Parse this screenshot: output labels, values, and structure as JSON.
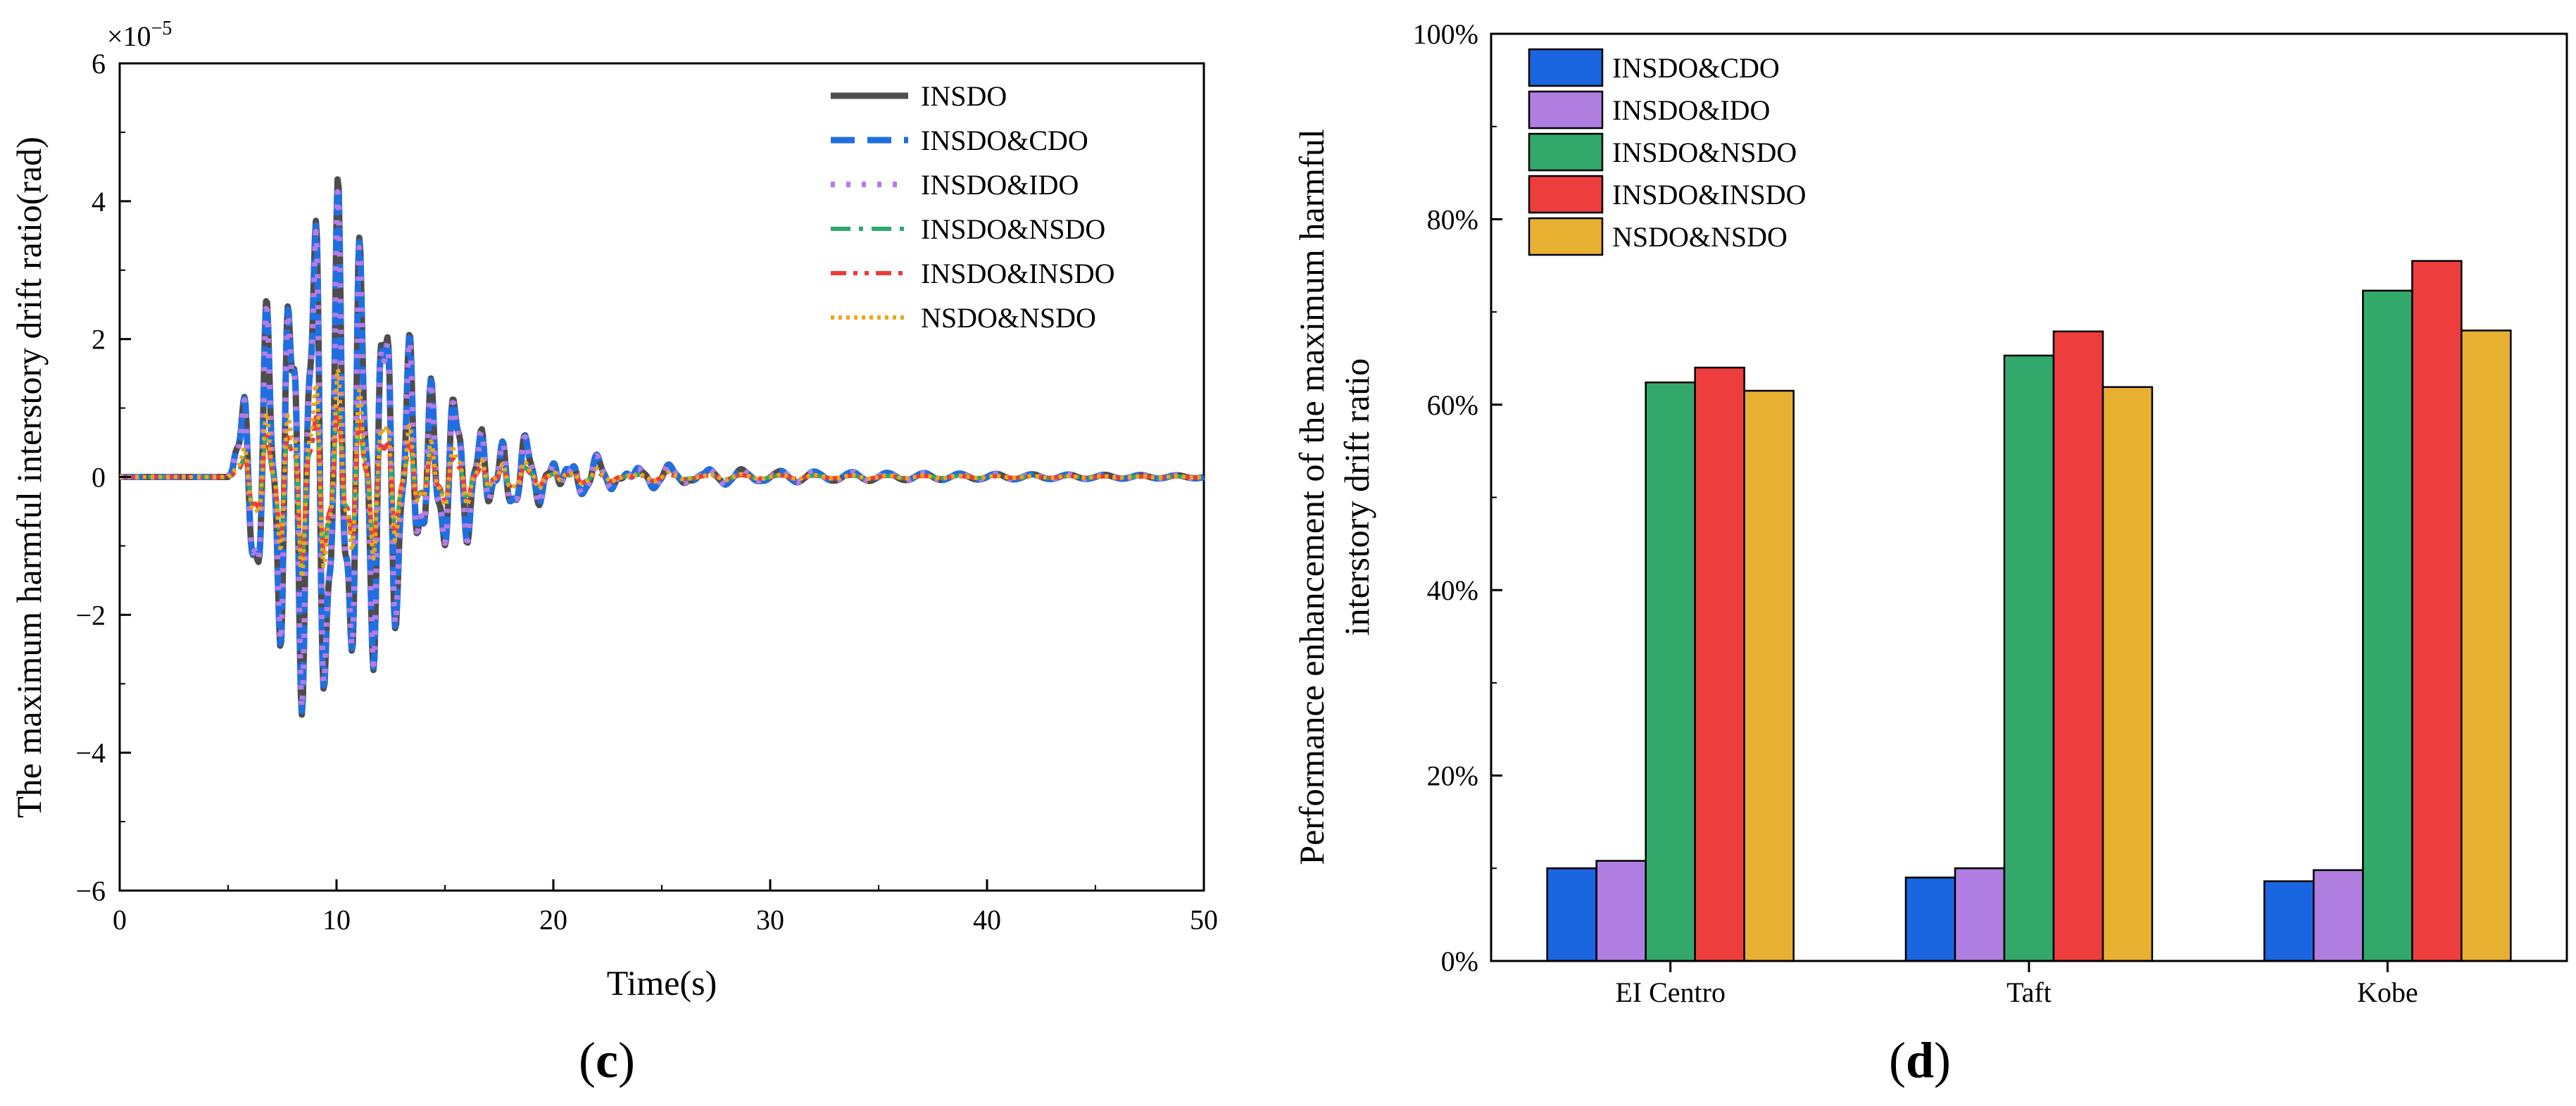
{
  "chart_data": [
    {
      "panel": "c",
      "panel_label_open": "(",
      "panel_label_letter": "c",
      "panel_label_close": ")",
      "type": "line",
      "title": "",
      "xlabel": "Time(s)",
      "ylabel": "The maximum harmful interstory drift ratio(rad)",
      "y_multiplier_base": "×10",
      "y_multiplier_exp": "−5",
      "xlim": [
        0,
        50
      ],
      "ylim": [
        -6,
        6
      ],
      "x_ticks": [
        0,
        10,
        20,
        30,
        40,
        50
      ],
      "y_ticks": [
        -6,
        -4,
        -2,
        0,
        2,
        4,
        6
      ],
      "x_tick_labels": [
        "0",
        "10",
        "20",
        "30",
        "40",
        "50"
      ],
      "y_tick_labels": [
        "−6",
        "−4",
        "−2",
        "0",
        "2",
        "4",
        "6"
      ],
      "legend_position": "top-right",
      "colors": {
        "INSDO": "#4d4d4d",
        "INSDO&CDO": "#1f6fe0",
        "INSDO&IDO": "#b57be8",
        "INSDO&NSDO": "#2ea86b",
        "INSDO&INSDO": "#f03a3a",
        "NSDO&NSDO": "#e8a81c"
      },
      "series": [
        {
          "name": "INSDO",
          "peak_positive": 4.28,
          "peak_negative": -3.55,
          "peak_time_positive": 11.1,
          "peak_time_negative": 10.2
        },
        {
          "name": "INSDO&CDO",
          "peak_positive": 4.2,
          "peak_negative": -3.5,
          "peak_time_positive": 11.1,
          "peak_time_negative": 10.2
        },
        {
          "name": "INSDO&IDO",
          "peak_positive": 4.1,
          "peak_negative": -3.45,
          "peak_time_positive": 11.1,
          "peak_time_negative": 10.2
        },
        {
          "name": "INSDO&NSDO",
          "peak_positive": 1.0,
          "peak_negative": -1.3,
          "peak_time_positive": 10.5,
          "peak_time_negative": 10.6
        },
        {
          "name": "INSDO&INSDO",
          "peak_positive": 1.0,
          "peak_negative": -1.25,
          "peak_time_positive": 10.5,
          "peak_time_negative": 8.3
        },
        {
          "name": "NSDO&NSDO",
          "peak_positive": 1.55,
          "peak_negative": -1.5,
          "peak_time_positive": 10.8,
          "peak_time_negative": 10.9
        }
      ]
    },
    {
      "panel": "d",
      "panel_label_open": "(",
      "panel_label_letter": "d",
      "panel_label_close": ")",
      "type": "bar",
      "title": "",
      "xlabel": "",
      "ylabel_line1": "Performance enhancement of the maximum harmful",
      "ylabel_line2": "interstory drift ratio",
      "ylim": [
        0,
        100
      ],
      "y_ticks": [
        0,
        20,
        40,
        60,
        80,
        100
      ],
      "y_tick_labels": [
        "0%",
        "20%",
        "40%",
        "60%",
        "80%",
        "100%"
      ],
      "categories": [
        "EI Centro",
        "Taft",
        "Kobe"
      ],
      "legend_position": "top-left",
      "series": [
        {
          "name": "INSDO&CDO",
          "color": "#1a66e0",
          "values": [
            10,
            9,
            8.6
          ]
        },
        {
          "name": "INSDO&IDO",
          "color": "#b07ee0",
          "values": [
            10.8,
            10,
            9.8
          ]
        },
        {
          "name": "INSDO&NSDO",
          "color": "#32a86a",
          "values": [
            62.4,
            65.3,
            72.3
          ]
        },
        {
          "name": "INSDO&INSDO",
          "color": "#ee3d3d",
          "values": [
            64,
            67.9,
            75.5
          ]
        },
        {
          "name": "NSDO&NSDO",
          "color": "#e8b030",
          "values": [
            61.5,
            61.9,
            68
          ]
        }
      ]
    }
  ]
}
